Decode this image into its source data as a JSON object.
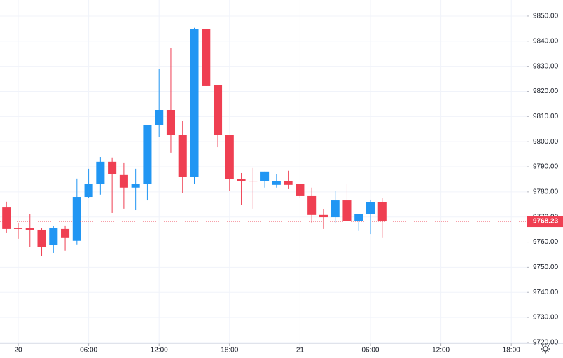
{
  "chart_data": {
    "type": "candlestick",
    "x": [
      -1,
      0,
      1,
      2,
      3,
      4,
      5,
      6,
      7,
      8,
      9,
      10,
      11,
      12,
      13,
      14,
      15,
      16,
      17,
      18,
      19,
      20,
      21,
      22,
      23,
      24,
      25,
      26,
      27,
      28,
      29,
      30,
      31
    ],
    "open": [
      9773.8,
      9765.5,
      9765.5,
      9764.9,
      9758.8,
      9765.2,
      9760.5,
      9778.0,
      9783.3,
      9792.0,
      9786.7,
      9781.7,
      9783.1,
      9806.5,
      9812.6,
      9802.6,
      9786.1,
      9844.7,
      9822.4,
      9802.6,
      9785.0,
      9784.4,
      9784.2,
      9782.8,
      9784.4,
      9783.1,
      9778.3,
      9770.8,
      9769.9,
      9776.6,
      9768.3,
      9771.1,
      9775.8
    ],
    "high": [
      9776.1,
      9767.7,
      9771.3,
      9765.5,
      9766.3,
      9766.6,
      9785.3,
      9789.2,
      9793.9,
      9793.7,
      9791.7,
      9789.2,
      9806.5,
      9828.8,
      9837.4,
      9808.4,
      9845.3,
      9844.7,
      9822.4,
      9802.6,
      9787.5,
      9789.5,
      9788.1,
      9787.2,
      9788.4,
      9783.1,
      9781.7,
      9773.0,
      9780.3,
      9783.3,
      9771.3,
      9776.9,
      9777.5
    ],
    "low": [
      9763.8,
      9761.3,
      9758.2,
      9754.3,
      9755.7,
      9756.6,
      9759.1,
      9777.5,
      9778.9,
      9771.6,
      9773.3,
      9772.7,
      9776.6,
      9802.0,
      9795.6,
      9779.4,
      9783.3,
      9822.1,
      9797.8,
      9780.5,
      9774.7,
      9773.3,
      9781.7,
      9781.7,
      9781.1,
      9777.5,
      9767.7,
      9765.2,
      9767.7,
      9768.3,
      9764.4,
      9763.2,
      9761.6
    ],
    "close": [
      9765.2,
      9765.2,
      9764.9,
      9758.2,
      9765.5,
      9761.6,
      9778.0,
      9783.3,
      9792.0,
      9787.0,
      9781.7,
      9783.1,
      9806.5,
      9812.6,
      9802.6,
      9786.1,
      9844.7,
      9822.1,
      9802.6,
      9785.0,
      9784.2,
      9784.2,
      9788.1,
      9784.4,
      9782.8,
      9778.3,
      9770.8,
      9769.9,
      9776.6,
      9768.3,
      9771.1,
      9775.8,
      9768.23
    ],
    "up_color": "#2196f3",
    "down_color": "#ef3f52",
    "xlim": [
      -1.55,
      43.3
    ],
    "xticks": [
      {
        "value": 0,
        "label": "20"
      },
      {
        "value": 6,
        "label": "06:00"
      },
      {
        "value": 12,
        "label": "12:00"
      },
      {
        "value": 18,
        "label": "18:00"
      },
      {
        "value": 24,
        "label": "21"
      },
      {
        "value": 30,
        "label": "06:00"
      },
      {
        "value": 36,
        "label": "12:00"
      },
      {
        "value": 42,
        "label": "18:00"
      }
    ],
    "ylim": [
      9719.7,
      9856.4
    ],
    "yticks": [
      {
        "value": 9720,
        "label": "9720.00"
      },
      {
        "value": 9730,
        "label": "9730.00"
      },
      {
        "value": 9740,
        "label": "9740.00"
      },
      {
        "value": 9750,
        "label": "9750.00"
      },
      {
        "value": 9760,
        "label": "9760.00"
      },
      {
        "value": 9770,
        "label": "9770.00"
      },
      {
        "value": 9780,
        "label": "9780.00"
      },
      {
        "value": 9790,
        "label": "9790.00"
      },
      {
        "value": 9800,
        "label": "9800.00"
      },
      {
        "value": 9810,
        "label": "9810.00"
      },
      {
        "value": 9820,
        "label": "9820.00"
      },
      {
        "value": 9830,
        "label": "9830.00"
      },
      {
        "value": 9840,
        "label": "9840.00"
      },
      {
        "value": 9850,
        "label": "9850.00"
      }
    ],
    "last_price": 9768.23,
    "grid": true
  }
}
